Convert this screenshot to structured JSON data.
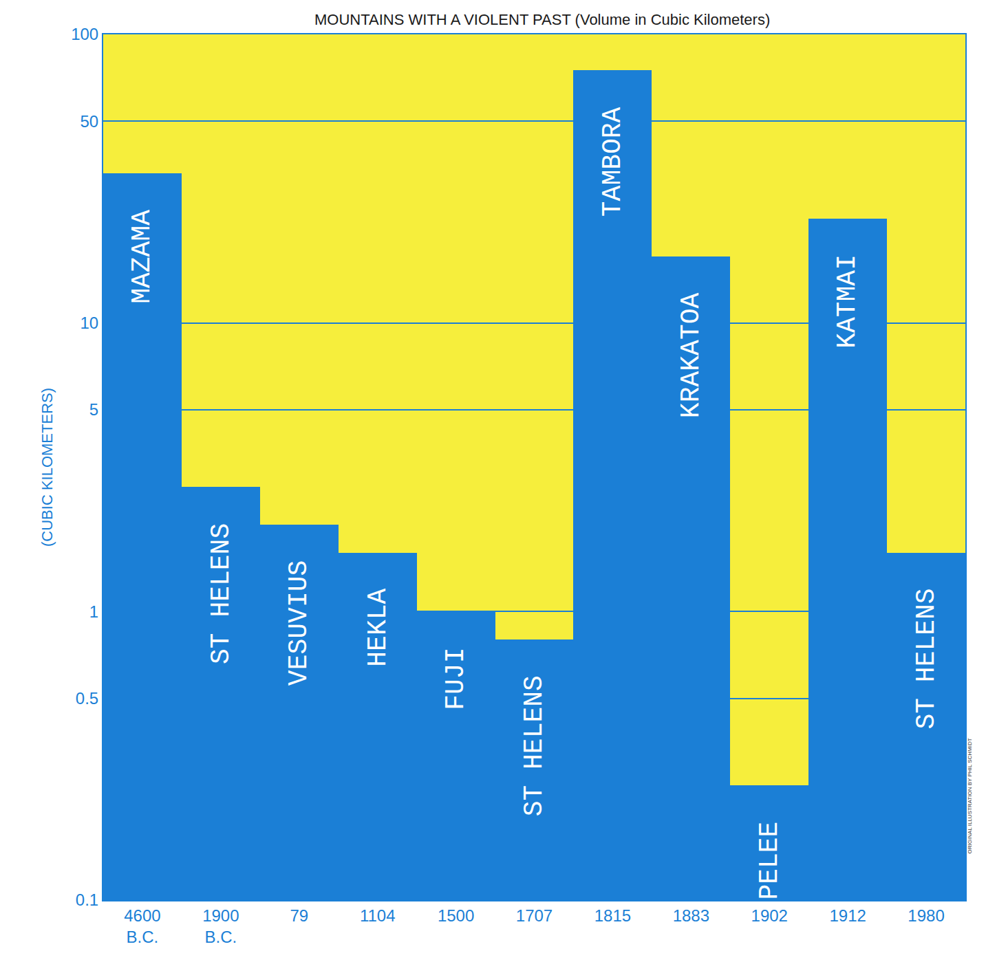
{
  "chart_data": {
    "type": "bar",
    "title": "MOUNTAINS WITH A VIOLENT PAST (Volume in Cubic Kilometers)",
    "y_label": "(CUBIC KILOMETERS)",
    "categories": [
      "4600 B.C.",
      "1900 B.C.",
      "79",
      "1104",
      "1500",
      "1707",
      "1815",
      "1883",
      "1902",
      "1912",
      "1980"
    ],
    "labels": [
      "MAZAMA",
      "ST HELENS",
      "VESUVIUS",
      "HEKLA",
      "FUJI",
      "ST HELENS",
      "TAMBORA",
      "KRAKATOA",
      "PELEE",
      "KATMAI",
      "ST HELENS"
    ],
    "values": [
      33,
      2.7,
      2.0,
      1.6,
      1.0,
      0.8,
      75,
      17,
      0.25,
      23,
      1.6
    ],
    "color": "#1b7fd6",
    "log": "y",
    "grid": true,
    "ylim": [
      0.1,
      100
    ],
    "yticks": [
      0.1,
      0.5,
      1,
      5,
      10,
      50,
      100
    ],
    "credit": "ORIGINAL ILLUSTRATION BY PHIL SCHMIDT"
  }
}
